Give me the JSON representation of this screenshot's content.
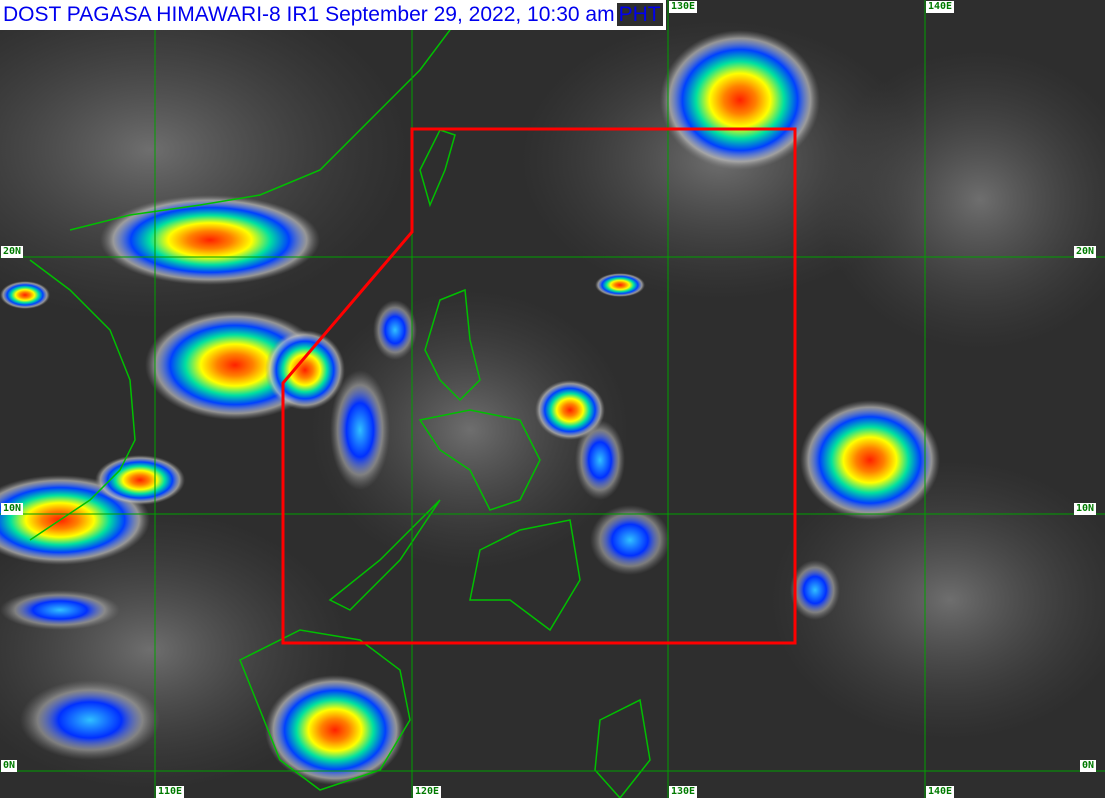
{
  "header": {
    "title": "DOST PAGASA HIMAWARI-8 IR1 September 29, 2022, 10:30 am",
    "timezone": "PHT"
  },
  "grid": {
    "latitudes": [
      "20N",
      "10N",
      "0N"
    ],
    "longitudes": [
      "110E",
      "120E",
      "130E",
      "140E"
    ],
    "line_color": "#00a000",
    "label_color": "#007a00"
  },
  "overlay": {
    "par_boundary_color": "#ff0000",
    "coastline_color": "#00c000"
  },
  "colors": {
    "background": "#2e2e2e",
    "cloud_scale": [
      "#c8c8c8",
      "#0000ff",
      "#00c8ff",
      "#00ff80",
      "#ffff00",
      "#ff8000",
      "#ff0000"
    ]
  }
}
